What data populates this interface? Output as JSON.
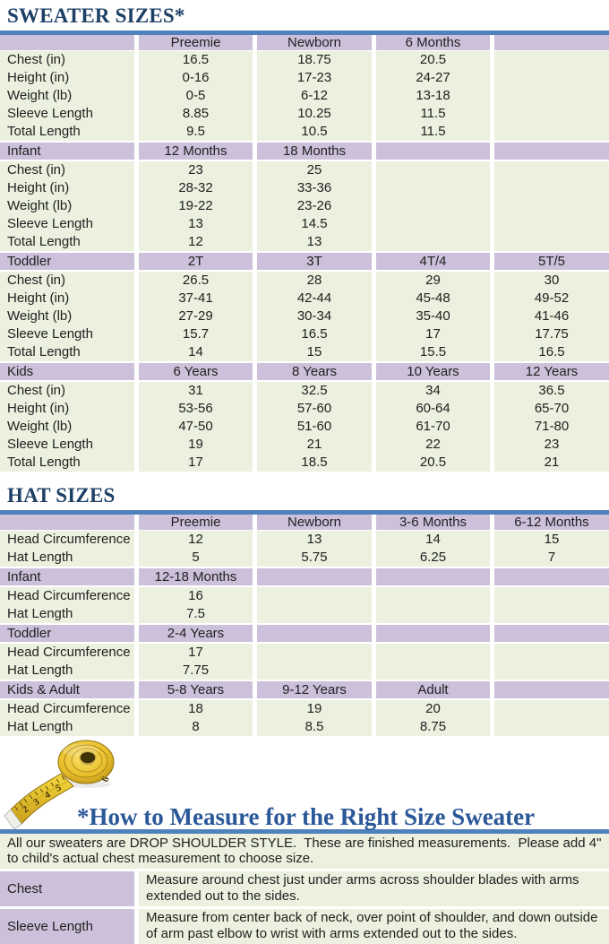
{
  "colors": {
    "accent_blue": "#4f81bd",
    "title_navy": "#1e4066",
    "heading_blue": "#2b5898",
    "purple_row": "#ccc0da",
    "green_row": "#ebf1de"
  },
  "sweater_table": {
    "title": "SWEATER SIZES*",
    "sections": [
      {
        "label": "",
        "cols": [
          "Preemie",
          "Newborn",
          "6 Months",
          ""
        ],
        "rows": [
          {
            "label": "Chest (in)",
            "values": [
              "16.5",
              "18.75",
              "20.5",
              ""
            ]
          },
          {
            "label": "Height (in)",
            "values": [
              "0-16",
              "17-23",
              "24-27",
              ""
            ]
          },
          {
            "label": "Weight (lb)",
            "values": [
              "0-5",
              "6-12",
              "13-18",
              ""
            ]
          },
          {
            "label": "Sleeve Length",
            "values": [
              "8.85",
              "10.25",
              "11.5",
              ""
            ]
          },
          {
            "label": "Total Length",
            "values": [
              "9.5",
              "10.5",
              "11.5",
              ""
            ]
          }
        ]
      },
      {
        "label": "Infant",
        "cols": [
          "12 Months",
          "18 Months",
          "",
          ""
        ],
        "rows": [
          {
            "label": "Chest (in)",
            "values": [
              "23",
              "25",
              "",
              ""
            ]
          },
          {
            "label": "Height (in)",
            "values": [
              "28-32",
              "33-36",
              "",
              ""
            ]
          },
          {
            "label": "Weight (lb)",
            "values": [
              "19-22",
              "23-26",
              "",
              ""
            ]
          },
          {
            "label": "Sleeve Length",
            "values": [
              "13",
              "14.5",
              "",
              ""
            ]
          },
          {
            "label": "Total Length",
            "values": [
              "12",
              "13",
              "",
              ""
            ]
          }
        ]
      },
      {
        "label": "Toddler",
        "cols": [
          "2T",
          "3T",
          "4T/4",
          "5T/5"
        ],
        "rows": [
          {
            "label": "Chest (in)",
            "values": [
              "26.5",
              "28",
              "29",
              "30"
            ]
          },
          {
            "label": "Height (in)",
            "values": [
              "37-41",
              "42-44",
              "45-48",
              "49-52"
            ]
          },
          {
            "label": "Weight (lb)",
            "values": [
              "27-29",
              "30-34",
              "35-40",
              "41-46"
            ]
          },
          {
            "label": "Sleeve Length",
            "values": [
              "15.7",
              "16.5",
              "17",
              "17.75"
            ]
          },
          {
            "label": "Total Length",
            "values": [
              "14",
              "15",
              "15.5",
              "16.5"
            ]
          }
        ]
      },
      {
        "label": "Kids",
        "cols": [
          "6 Years",
          "8 Years",
          "10 Years",
          "12 Years"
        ],
        "rows": [
          {
            "label": "Chest (in)",
            "values": [
              "31",
              "32.5",
              "34",
              "36.5"
            ]
          },
          {
            "label": "Height (in)",
            "values": [
              "53-56",
              "57-60",
              "60-64",
              "65-70"
            ]
          },
          {
            "label": "Weight (lb)",
            "values": [
              "47-50",
              "51-60",
              "61-70",
              "71-80"
            ]
          },
          {
            "label": "Sleeve Length",
            "values": [
              "19",
              "21",
              "22",
              "23"
            ]
          },
          {
            "label": "Total Length",
            "values": [
              "17",
              "18.5",
              "20.5",
              "21"
            ]
          }
        ]
      }
    ]
  },
  "hat_table": {
    "title": "HAT SIZES",
    "sections": [
      {
        "label": "",
        "cols": [
          "Preemie",
          "Newborn",
          "3-6 Months",
          "6-12 Months"
        ],
        "rows": [
          {
            "label": "Head Circumference",
            "values": [
              "12",
              "13",
              "14",
              "15"
            ]
          },
          {
            "label": "Hat Length",
            "values": [
              "5",
              "5.75",
              "6.25",
              "7"
            ]
          }
        ]
      },
      {
        "label": "Infant",
        "cols": [
          "12-18 Months",
          "",
          "",
          ""
        ],
        "rows": [
          {
            "label": "Head Circumference",
            "values": [
              "16",
              "",
              "",
              ""
            ]
          },
          {
            "label": "Hat Length",
            "values": [
              "7.5",
              "",
              "",
              ""
            ]
          }
        ]
      },
      {
        "label": "Toddler",
        "cols": [
          "2-4 Years",
          "",
          "",
          ""
        ],
        "rows": [
          {
            "label": "Head Circumference",
            "values": [
              "17",
              "",
              "",
              ""
            ]
          },
          {
            "label": "Hat Length",
            "values": [
              "7.75",
              "",
              "",
              ""
            ]
          }
        ]
      },
      {
        "label": "Kids & Adult",
        "cols": [
          "5-8 Years",
          "9-12 Years",
          "Adult",
          ""
        ],
        "rows": [
          {
            "label": "Head Circumference",
            "values": [
              "18",
              "19",
              "20",
              ""
            ]
          },
          {
            "label": "Hat Length",
            "values": [
              "8",
              "8.5",
              "8.75",
              ""
            ]
          }
        ]
      }
    ]
  },
  "measure": {
    "heading": "*How to Measure for the Right Size Sweater",
    "intro": "All our sweaters are DROP SHOULDER STYLE.  These are finished measurements.  Please add 4\" to child's actual chest measurement to choose size.",
    "rows": [
      {
        "label": "Chest",
        "text": "Measure around chest just under arms across shoulder blades with arms extended out to the sides."
      },
      {
        "label": "Sleeve Length",
        "text": "Measure from center back of neck, over point of shoulder, and down outside of arm past elbow to wrist with arms extended out to the sides."
      }
    ],
    "tape_numbers": [
      "1",
      "2",
      "3",
      "4",
      "5",
      "6"
    ]
  }
}
